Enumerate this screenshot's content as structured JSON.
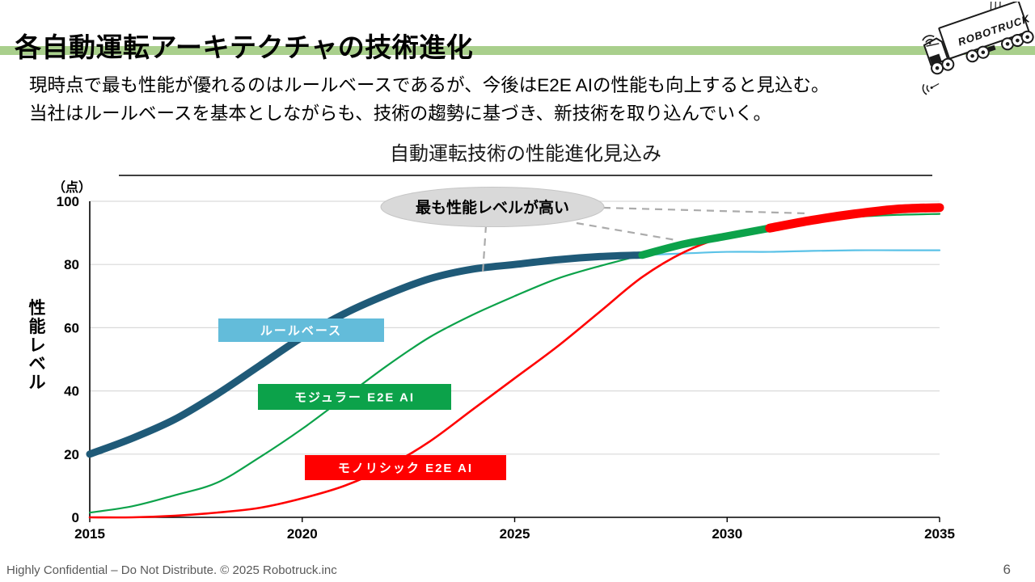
{
  "slide": {
    "title": "各自動運転アーキテクチャの技術進化",
    "body_lines": [
      "現時点で最も性能が優れるのはルールベースであるが、今後はE2E AIの性能も向上すると見込む。",
      "当社はルールベースを基本としながらも、技術の趨勢に基づき、新技術を取り込んでいく。"
    ],
    "logo_text": "ROBOTRUCK",
    "footer": "Highly Confidential – Do Not Distribute. © 2025 Robotruck.inc",
    "page_number": "6"
  },
  "colors": {
    "accent_bar": "#A9CF8C",
    "rule_base_thick": "#1F5A78",
    "rule_base_line": "#5BC2E7",
    "modular_line": "#0CA24A",
    "monolithic_line": "#FF0000",
    "gridline": "#D9D9D9",
    "callout_fill": "#D9D9D9",
    "leader_dash": "#ABABAB",
    "footer_text": "#595959"
  },
  "chart_data": {
    "type": "line",
    "title": "自動運転技術の性能進化見込み",
    "unit_label": "（点）",
    "ylabel": "性能レベル",
    "xlabel": "",
    "ylim": [
      0,
      100
    ],
    "yticks": [
      0,
      20,
      40,
      60,
      80,
      100
    ],
    "xticks": [
      2015,
      2020,
      2025,
      2030,
      2035
    ],
    "grid": "horizontal",
    "years": [
      2015,
      2016,
      2017,
      2018,
      2019,
      2020,
      2021,
      2022,
      2023,
      2024,
      2025,
      2026,
      2027,
      2028,
      2029,
      2030,
      2031,
      2032,
      2033,
      2034,
      2035
    ],
    "series": [
      {
        "name": "ルールベース",
        "color": "#5BC2E7",
        "legend_fill": "#63BCDA",
        "values": [
          20,
          25,
          31,
          39,
          48,
          57,
          64.5,
          70.5,
          75.5,
          78.5,
          80,
          81.5,
          82.5,
          83,
          83.5,
          84,
          84,
          84.3,
          84.5,
          84.5,
          84.5
        ]
      },
      {
        "name": "モジュラー E2E AI",
        "color": "#0CA24A",
        "legend_fill": "#0CA24A",
        "values": [
          1.5,
          3.5,
          7,
          11,
          19,
          28,
          38,
          48,
          57,
          64,
          70,
          75.5,
          79.5,
          83,
          86.5,
          89,
          91.5,
          93.5,
          95,
          95.7,
          96
        ]
      },
      {
        "name": "モノリシック E2E AI",
        "color": "#FF0000",
        "legend_fill": "#FF0000",
        "values": [
          0,
          0,
          0.5,
          1.5,
          3,
          6,
          10,
          16,
          24,
          34,
          44,
          54,
          65,
          76,
          84,
          89,
          91.5,
          94,
          96,
          97.5,
          98
        ]
      }
    ],
    "highlight": {
      "label": "最も性能レベルが高い",
      "segments": [
        {
          "series": "ルールベース",
          "from": 2015,
          "to": 2028,
          "color": "#1F5A78"
        },
        {
          "series": "モジュラー E2E AI",
          "from": 2028,
          "to": 2031,
          "color": "#0CA24A"
        },
        {
          "series": "モノリシック E2E AI",
          "from": 2031,
          "to": 2035,
          "color": "#FF0000"
        }
      ]
    }
  }
}
